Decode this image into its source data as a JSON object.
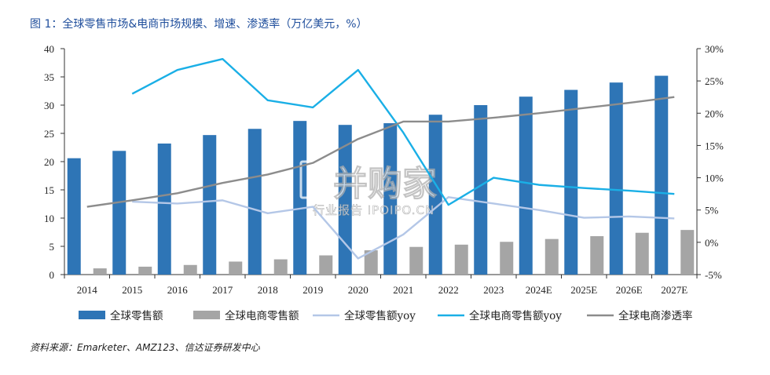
{
  "figure": {
    "title": "图 1：全球零售市场&电商市场规模、增速、渗透率（万亿美元，%）",
    "source": "资料来源：Emarketer、AMZ123、信达证券研发中心",
    "watermark_main": "并购家",
    "watermark_sub": "行业报告 IPOIPO.CN"
  },
  "chart_data": {
    "type": "bar",
    "categories": [
      "2014",
      "2015",
      "2016",
      "2017",
      "2018",
      "2019",
      "2020",
      "2021",
      "2022",
      "2023",
      "2024E",
      "2025E",
      "2026E",
      "2027E"
    ],
    "y_left": {
      "ylim": [
        0,
        40
      ],
      "ticks": [
        "0",
        "5",
        "10",
        "15",
        "20",
        "25",
        "30",
        "35",
        "40"
      ]
    },
    "y_right": {
      "ylim": [
        -5,
        30
      ],
      "ticks": [
        "-5%",
        "0%",
        "5%",
        "10%",
        "15%",
        "20%",
        "25%",
        "30%"
      ]
    },
    "grid": false,
    "legend_position": "bottom",
    "series": [
      {
        "name": "全球零售额",
        "type": "bar",
        "axis": "left",
        "color": "#2e75b6",
        "values": [
          20.6,
          21.9,
          23.2,
          24.7,
          25.8,
          27.2,
          26.5,
          26.8,
          28.3,
          30.0,
          31.5,
          32.7,
          34.0,
          35.2
        ]
      },
      {
        "name": "全球电商零售额",
        "type": "bar",
        "axis": "left",
        "color": "#a5a5a5",
        "values": [
          1.1,
          1.4,
          1.7,
          2.3,
          2.7,
          3.4,
          4.3,
          4.9,
          5.3,
          5.8,
          6.3,
          6.8,
          7.4,
          7.9
        ]
      },
      {
        "name": "全球零售额yoy",
        "type": "line",
        "axis": "right",
        "color": "#b4c7e7",
        "values": [
          null,
          6.3,
          6.0,
          6.5,
          4.5,
          5.5,
          -2.5,
          1.2,
          7.0,
          6.0,
          5.0,
          3.8,
          4.0,
          3.7
        ]
      },
      {
        "name": "全球电商零售额yoy",
        "type": "line",
        "axis": "right",
        "color": "#1aafe6",
        "values": [
          null,
          23.0,
          26.7,
          28.4,
          22.0,
          20.9,
          26.7,
          17.0,
          5.8,
          10.0,
          8.9,
          8.4,
          8.0,
          7.5
        ]
      },
      {
        "name": "全球电商渗透率",
        "type": "line",
        "axis": "right",
        "color": "#8c8c8c",
        "values": [
          5.5,
          6.5,
          7.6,
          9.2,
          10.5,
          12.3,
          16.0,
          18.7,
          18.7,
          19.3,
          20.0,
          20.8,
          21.6,
          22.5
        ]
      }
    ]
  }
}
